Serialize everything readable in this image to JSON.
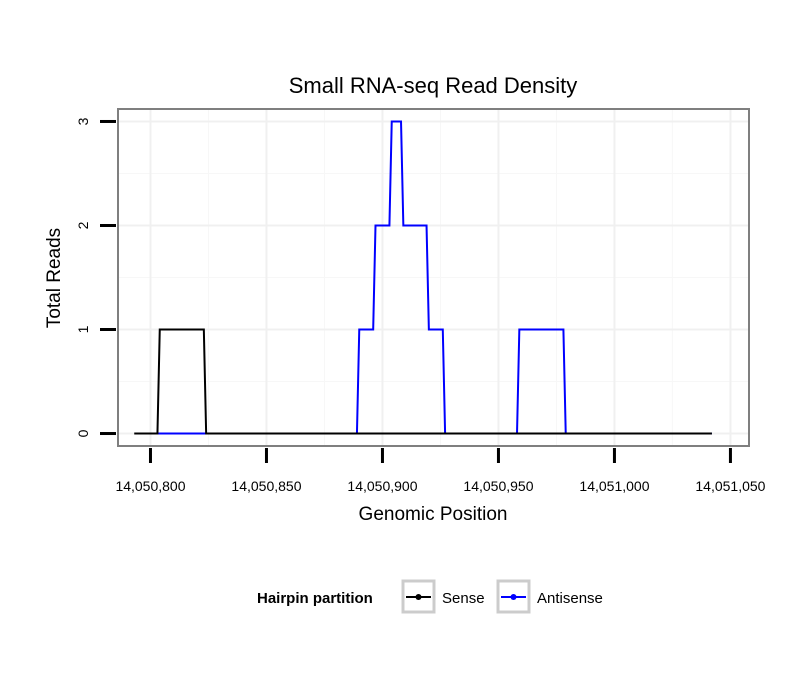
{
  "chart_data": {
    "type": "line",
    "title": "Small RNA-seq Read Density",
    "xlabel": "Genomic Position",
    "ylabel": "Total Reads",
    "xlim": [
      14050786,
      14051058
    ],
    "ylim": [
      -0.12,
      3.12
    ],
    "x_ticks": [
      14050800,
      14050850,
      14050900,
      14050950,
      14051000,
      14051050
    ],
    "x_tick_labels": [
      "14,050,800",
      "14,050,850",
      "14,050,900",
      "14,050,950",
      "14,051,000",
      "14,051,050"
    ],
    "y_ticks": [
      0,
      1,
      2,
      3
    ],
    "y_tick_labels": [
      "0",
      "1",
      "2",
      "3"
    ],
    "grid": true,
    "legend": {
      "title": "Hairpin partition",
      "placement": "bottom",
      "entries": [
        "Sense",
        "Antisense"
      ]
    },
    "series": [
      {
        "name": "Antisense",
        "color": "#0000ff",
        "x": [
          14050803,
          14050889,
          14050890,
          14050896,
          14050897,
          14050903,
          14050904,
          14050908,
          14050909,
          14050919,
          14050920,
          14050926,
          14050927,
          14050958,
          14050959,
          14050978,
          14050979,
          14051042
        ],
        "y": [
          0,
          0,
          1,
          1,
          2,
          2,
          3,
          3,
          2,
          2,
          1,
          1,
          0,
          0,
          1,
          1,
          0,
          0
        ]
      },
      {
        "name": "Sense",
        "color": "#000000",
        "x": [
          14050793,
          14050797,
          14050803,
          14050804,
          14050823,
          14050824,
          14051042
        ],
        "y": [
          0,
          0,
          0,
          1,
          1,
          0,
          0
        ]
      }
    ]
  }
}
